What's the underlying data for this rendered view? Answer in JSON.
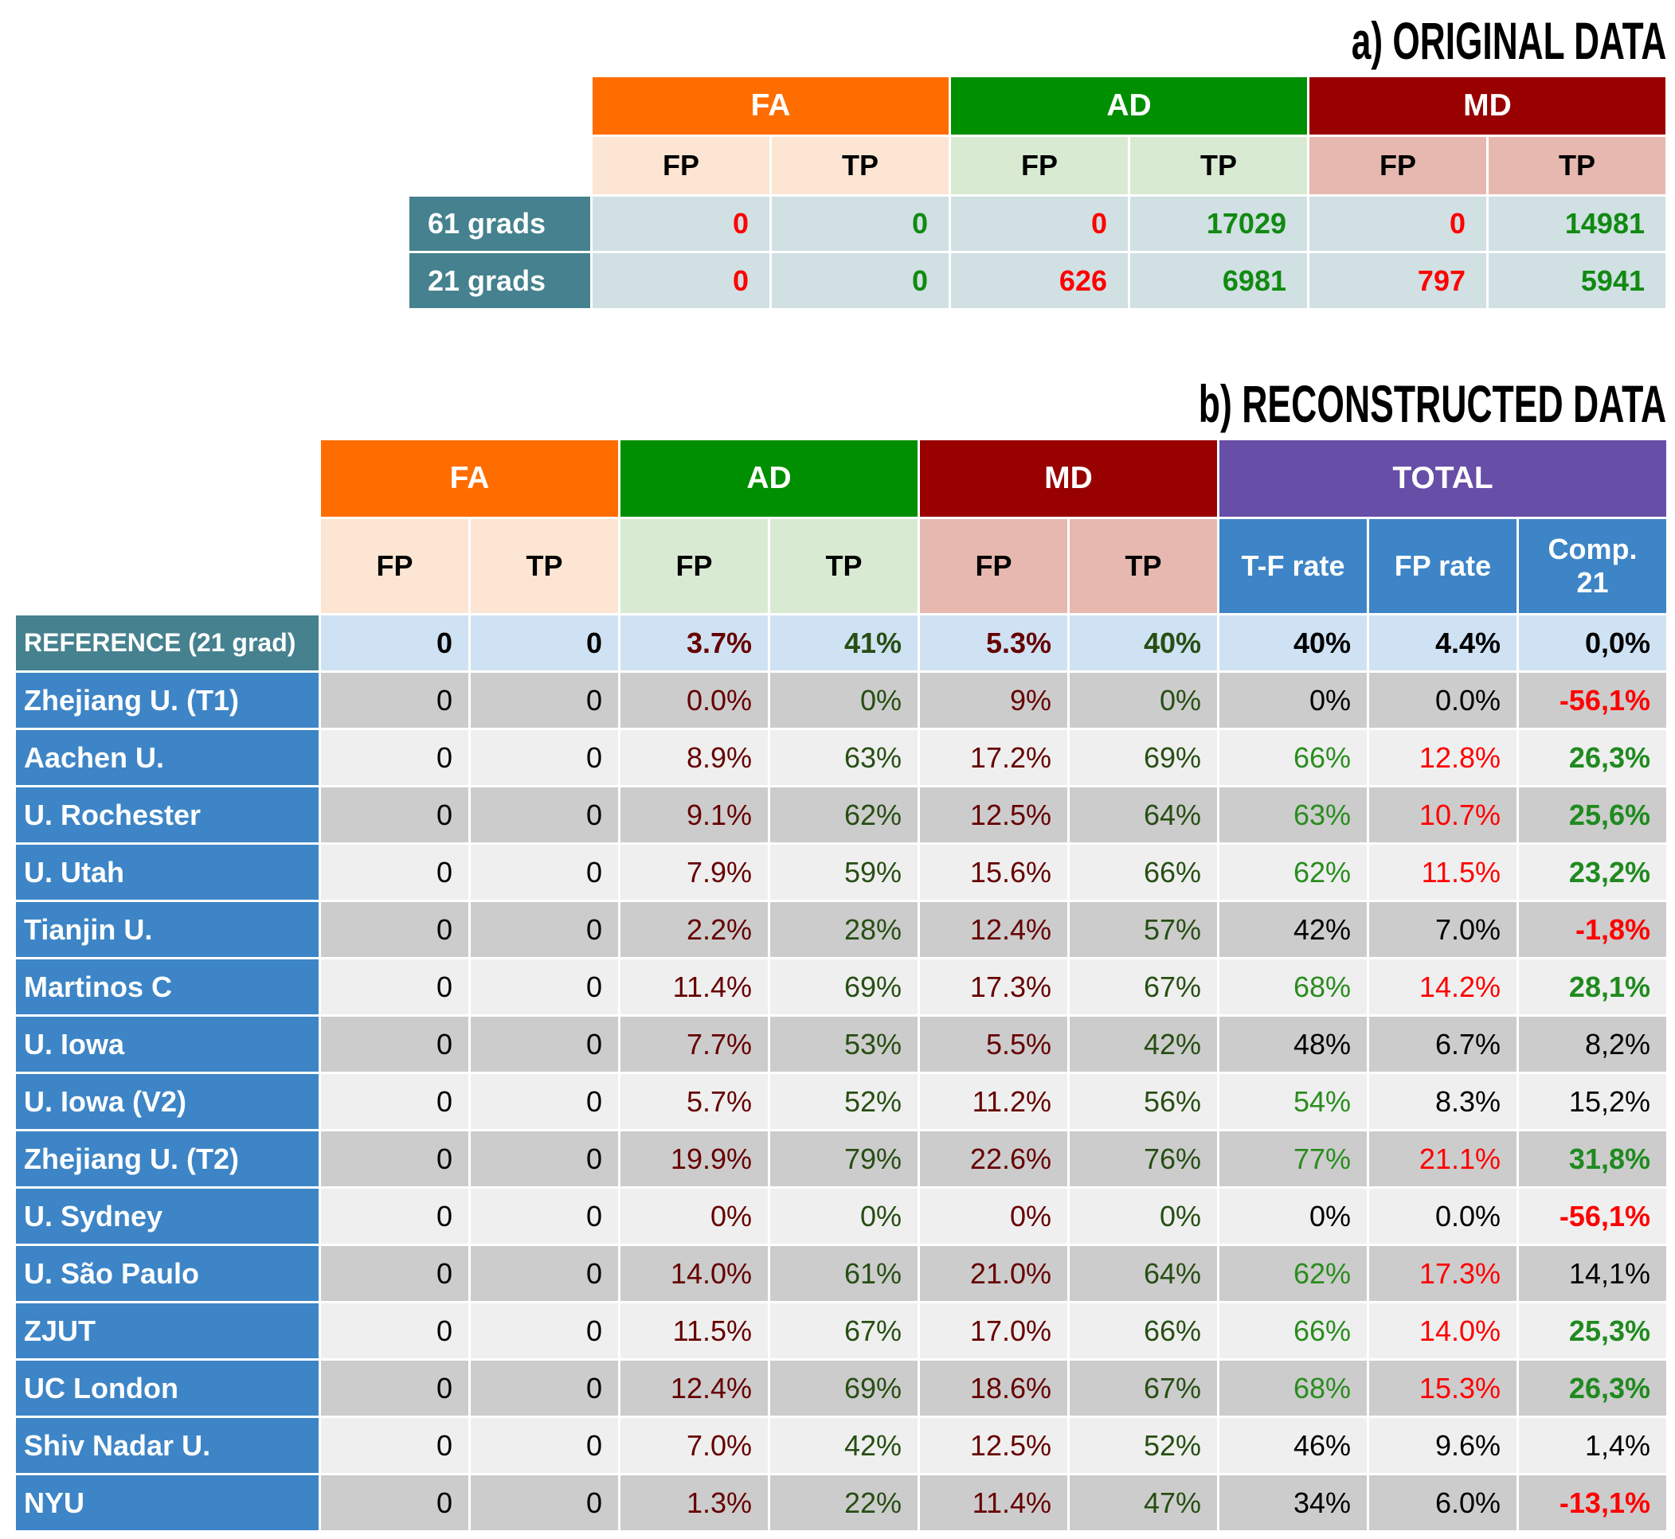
{
  "chart_data": [
    {
      "type": "table",
      "title": "a) ORIGINAL DATA",
      "column_groups": [
        {
          "label": "FA",
          "span": 2,
          "color": "#FF6D00",
          "sub_color": "#FCE5D2",
          "sub_text_color": "#000000"
        },
        {
          "label": "AD",
          "span": 2,
          "color": "#008F00",
          "sub_color": "#D9EAD3",
          "sub_text_color": "#000000"
        },
        {
          "label": "MD",
          "span": 2,
          "color": "#990000",
          "sub_color": "#E6B8AF",
          "sub_text_color": "#000000"
        }
      ],
      "columns": [
        "FP",
        "TP",
        "FP",
        "TP",
        "FP",
        "TP"
      ],
      "column_colors": [
        "#FF0000",
        "#118A11",
        "#FF0000",
        "#118A11",
        "#FF0000",
        "#118A11"
      ],
      "label_color": "#45818E",
      "cell_color": "#D0E0E3",
      "rows": [
        {
          "label": "61 grads",
          "values": [
            "0",
            "0",
            "0",
            "17029",
            "0",
            "14981"
          ]
        },
        {
          "label": "21 grads",
          "values": [
            "0",
            "0",
            "626",
            "6981",
            "797",
            "5941"
          ]
        }
      ]
    },
    {
      "type": "table",
      "title": "b) RECONSTRUCTED DATA",
      "column_groups": [
        {
          "label": "FA",
          "span": 2,
          "color": "#FF6D00",
          "sub_color": "#FCE5D2",
          "sub_text_color": "#000000"
        },
        {
          "label": "AD",
          "span": 2,
          "color": "#008F00",
          "sub_color": "#D9EAD3",
          "sub_text_color": "#000000"
        },
        {
          "label": "MD",
          "span": 2,
          "color": "#990000",
          "sub_color": "#E6B8AF",
          "sub_text_color": "#000000"
        },
        {
          "label": "TOTAL",
          "span": 3,
          "color": "#674EA7",
          "sub_color": "#3D85C6",
          "sub_text_color": "#FFFFFF"
        }
      ],
      "columns": [
        "FP",
        "TP",
        "FP",
        "TP",
        "FP",
        "TP",
        "T-F rate",
        "FP rate",
        "Comp.\n21"
      ],
      "column_colors": [
        "#000000",
        "#000000",
        "#660000",
        "#274E13",
        "#660000",
        "#274E13",
        "#000000",
        "#000000",
        "#000000"
      ],
      "row_label_color": "#3D85C6",
      "row_colors": [
        "#CCCCCC",
        "#EFEFEF"
      ],
      "reference": {
        "label": "REFERENCE (21 grad)",
        "label_color": "#45818E",
        "cell_color": "#CFE2F3",
        "values": [
          "0",
          "0",
          "3.7%",
          "41%",
          "5.3%",
          "40%",
          "40%",
          "4.4%",
          "0,0%"
        ],
        "total_colors": [
          "#000000",
          "#000000",
          "#000000"
        ]
      },
      "rows": [
        {
          "label": "Zhejiang U. (T1)",
          "values": [
            "0",
            "0",
            "0.0%",
            "0%",
            "9%",
            "0%",
            "0%",
            "0.0%",
            "-56,1%"
          ],
          "total_colors": [
            "#000000",
            "#000000",
            "#FF0000"
          ],
          "comp_bold": true
        },
        {
          "label": "Aachen U.",
          "values": [
            "0",
            "0",
            "8.9%",
            "63%",
            "17.2%",
            "69%",
            "66%",
            "12.8%",
            "26,3%"
          ],
          "total_colors": [
            "#2A8C1E",
            "#FF0000",
            "#1F8A1F"
          ],
          "comp_bold": true
        },
        {
          "label": "U. Rochester",
          "values": [
            "0",
            "0",
            "9.1%",
            "62%",
            "12.5%",
            "64%",
            "63%",
            "10.7%",
            "25,6%"
          ],
          "total_colors": [
            "#2A8C1E",
            "#FF0000",
            "#1F8A1F"
          ],
          "comp_bold": true
        },
        {
          "label": "U. Utah",
          "values": [
            "0",
            "0",
            "7.9%",
            "59%",
            "15.6%",
            "66%",
            "62%",
            "11.5%",
            "23,2%"
          ],
          "total_colors": [
            "#2A8C1E",
            "#FF0000",
            "#1F8A1F"
          ],
          "comp_bold": true
        },
        {
          "label": "Tianjin U.",
          "values": [
            "0",
            "0",
            "2.2%",
            "28%",
            "12.4%",
            "57%",
            "42%",
            "7.0%",
            "-1,8%"
          ],
          "total_colors": [
            "#000000",
            "#000000",
            "#FF0000"
          ],
          "comp_bold": true
        },
        {
          "label": "Martinos C",
          "values": [
            "0",
            "0",
            "11.4%",
            "69%",
            "17.3%",
            "67%",
            "68%",
            "14.2%",
            "28,1%"
          ],
          "total_colors": [
            "#2A8C1E",
            "#FF0000",
            "#1F8A1F"
          ],
          "comp_bold": true
        },
        {
          "label": "U. Iowa",
          "values": [
            "0",
            "0",
            "7.7%",
            "53%",
            "5.5%",
            "42%",
            "48%",
            "6.7%",
            "8,2%"
          ],
          "total_colors": [
            "#000000",
            "#000000",
            "#000000"
          ],
          "comp_bold": false
        },
        {
          "label": "U. Iowa (V2)",
          "values": [
            "0",
            "0",
            "5.7%",
            "52%",
            "11.2%",
            "56%",
            "54%",
            "8.3%",
            "15,2%"
          ],
          "total_colors": [
            "#2A8C1E",
            "#000000",
            "#000000"
          ],
          "comp_bold": false
        },
        {
          "label": "Zhejiang U. (T2)",
          "values": [
            "0",
            "0",
            "19.9%",
            "79%",
            "22.6%",
            "76%",
            "77%",
            "21.1%",
            "31,8%"
          ],
          "total_colors": [
            "#2A8C1E",
            "#FF0000",
            "#1F8A1F"
          ],
          "comp_bold": true
        },
        {
          "label": "U. Sydney",
          "values": [
            "0",
            "0",
            "0%",
            "0%",
            "0%",
            "0%",
            "0%",
            "0.0%",
            "-56,1%"
          ],
          "total_colors": [
            "#000000",
            "#000000",
            "#FF0000"
          ],
          "comp_bold": true
        },
        {
          "label": "U. São Paulo",
          "values": [
            "0",
            "0",
            "14.0%",
            "61%",
            "21.0%",
            "64%",
            "62%",
            "17.3%",
            "14,1%"
          ],
          "total_colors": [
            "#2A8C1E",
            "#FF0000",
            "#000000"
          ],
          "comp_bold": false
        },
        {
          "label": "ZJUT",
          "values": [
            "0",
            "0",
            "11.5%",
            "67%",
            "17.0%",
            "66%",
            "66%",
            "14.0%",
            "25,3%"
          ],
          "total_colors": [
            "#2A8C1E",
            "#FF0000",
            "#1F8A1F"
          ],
          "comp_bold": true
        },
        {
          "label": "UC London",
          "values": [
            "0",
            "0",
            "12.4%",
            "69%",
            "18.6%",
            "67%",
            "68%",
            "15.3%",
            "26,3%"
          ],
          "total_colors": [
            "#2A8C1E",
            "#FF0000",
            "#1F8A1F"
          ],
          "comp_bold": true
        },
        {
          "label": "Shiv Nadar U.",
          "values": [
            "0",
            "0",
            "7.0%",
            "42%",
            "12.5%",
            "52%",
            "46%",
            "9.6%",
            "1,4%"
          ],
          "total_colors": [
            "#000000",
            "#000000",
            "#000000"
          ],
          "comp_bold": false
        },
        {
          "label": "NYU",
          "values": [
            "0",
            "0",
            "1.3%",
            "22%",
            "11.4%",
            "47%",
            "34%",
            "6.0%",
            "-13,1%"
          ],
          "total_colors": [
            "#000000",
            "#000000",
            "#FF0000"
          ],
          "comp_bold": true
        }
      ]
    }
  ]
}
